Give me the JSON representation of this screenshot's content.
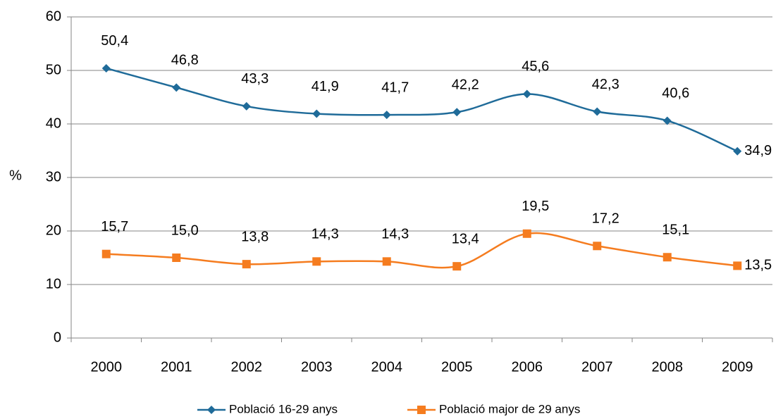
{
  "chart_data": {
    "type": "line",
    "categories": [
      "2000",
      "2001",
      "2002",
      "2003",
      "2004",
      "2005",
      "2006",
      "2007",
      "2008",
      "2009"
    ],
    "series": [
      {
        "name": "Població 16-29 anys",
        "color": "#1f6b99",
        "values": [
          50.4,
          46.8,
          43.3,
          41.9,
          41.7,
          42.2,
          45.6,
          42.3,
          40.6,
          34.9
        ],
        "value_labels": [
          "50,4",
          "46,8",
          "43,3",
          "41,9",
          "41,7",
          "42,2",
          "45,6",
          "42,3",
          "40,6",
          "34,9"
        ]
      },
      {
        "name": "Població major de 29 anys",
        "color": "#f57c1f",
        "values": [
          15.7,
          15.0,
          13.8,
          14.3,
          14.3,
          13.4,
          19.5,
          17.2,
          15.1,
          13.5
        ],
        "value_labels": [
          "15,7",
          "15,0",
          "13,8",
          "14,3",
          "14,3",
          "13,4",
          "19,5",
          "17,2",
          "15,1",
          "13,5"
        ]
      }
    ],
    "y_label": "%",
    "ylim": [
      0,
      60
    ],
    "yticks": [
      0,
      10,
      20,
      30,
      40,
      50,
      60
    ],
    "grid": true,
    "legend": "bottom"
  }
}
